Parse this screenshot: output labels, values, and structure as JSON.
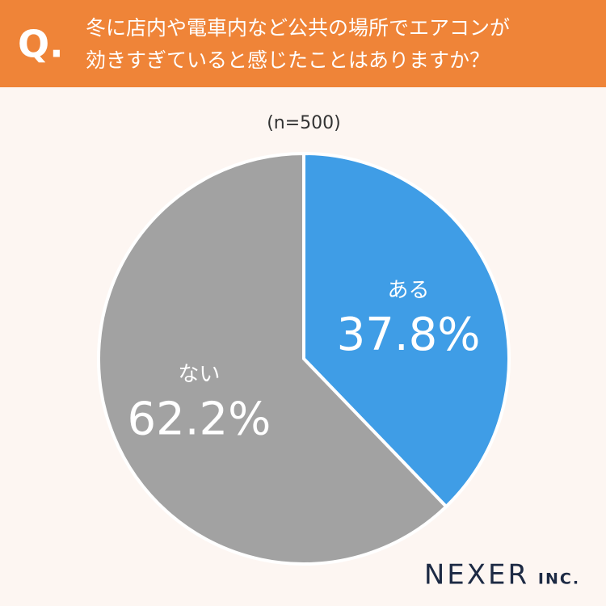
{
  "question_marker": "Q.",
  "brand": "NEXER",
  "brand_suffix": "INC.",
  "chart_data": {
    "type": "pie",
    "title": [
      "冬に店内や電車内など公共の場所でエアコンが",
      "効きすぎていると感じたことはありますか？"
    ],
    "subtitle": "(n=500)",
    "categories": [
      "ある",
      "ない"
    ],
    "values": [
      37.8,
      62.2
    ],
    "value_labels": [
      "37.8%",
      "62.2%"
    ],
    "colors": [
      "#3f9de6",
      "#a2a2a2"
    ]
  }
}
